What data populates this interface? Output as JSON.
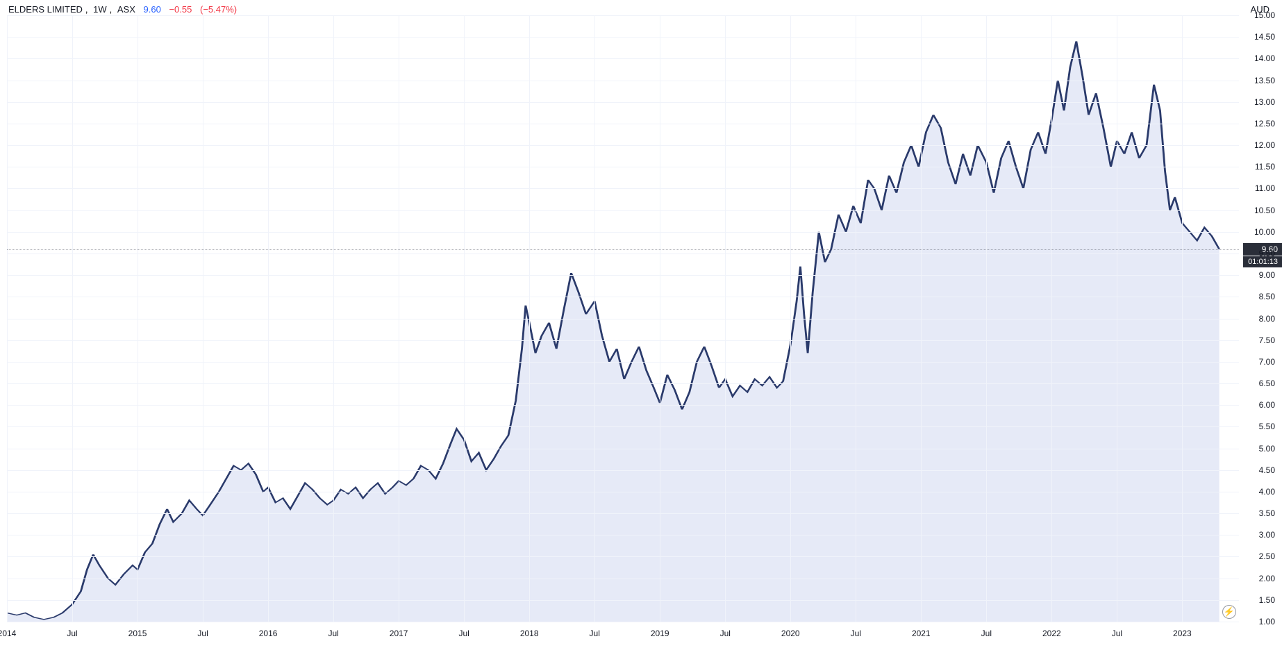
{
  "header": {
    "title": "ELDERS LIMITED",
    "interval": "1W",
    "exchange": "ASX",
    "price": "9.60",
    "change": "−0.55",
    "pct": "(−5.47%)"
  },
  "currency_label": "AUD",
  "chart": {
    "type": "area",
    "line_color": "#2a3a6b",
    "fill_color": "#d1d9f0",
    "fill_opacity": 0.55,
    "background_color": "#ffffff",
    "grid_color": "#f0f3fa",
    "price_line_color": "#5d606b",
    "price_tag_bg": "#2a2e39",
    "price_tag_fg": "#ffffff",
    "current_price": 9.6,
    "countdown": "01:01:13",
    "ylim": [
      1.0,
      15.0
    ],
    "ytick_step": 0.5,
    "y_ticks": [
      1.0,
      1.5,
      2.0,
      2.5,
      3.0,
      3.5,
      4.0,
      4.5,
      5.0,
      5.5,
      6.0,
      6.5,
      7.0,
      7.5,
      8.0,
      8.5,
      9.0,
      9.5,
      10.0,
      10.5,
      11.0,
      11.5,
      12.0,
      12.5,
      13.0,
      13.5,
      14.0,
      14.5,
      15.0
    ],
    "x_ticks": [
      {
        "t": 0.0,
        "label": "2014"
      },
      {
        "t": 5.3,
        "label": "Jul"
      },
      {
        "t": 10.6,
        "label": "2015"
      },
      {
        "t": 15.9,
        "label": "Jul"
      },
      {
        "t": 21.2,
        "label": "2016"
      },
      {
        "t": 26.5,
        "label": "Jul"
      },
      {
        "t": 31.8,
        "label": "2017"
      },
      {
        "t": 37.1,
        "label": "Jul"
      },
      {
        "t": 42.4,
        "label": "2018"
      },
      {
        "t": 47.7,
        "label": "Jul"
      },
      {
        "t": 53.0,
        "label": "2019"
      },
      {
        "t": 58.3,
        "label": "Jul"
      },
      {
        "t": 63.6,
        "label": "2020"
      },
      {
        "t": 68.9,
        "label": "Jul"
      },
      {
        "t": 74.2,
        "label": "2021"
      },
      {
        "t": 79.5,
        "label": "Jul"
      },
      {
        "t": 84.8,
        "label": "2022"
      },
      {
        "t": 90.1,
        "label": "Jul"
      },
      {
        "t": 95.4,
        "label": "2023"
      }
    ],
    "x_range": [
      0,
      100
    ],
    "series": [
      {
        "t": 0.0,
        "v": 1.2
      },
      {
        "t": 0.8,
        "v": 1.15
      },
      {
        "t": 1.5,
        "v": 1.2
      },
      {
        "t": 2.2,
        "v": 1.1
      },
      {
        "t": 3.0,
        "v": 1.05
      },
      {
        "t": 3.8,
        "v": 1.1
      },
      {
        "t": 4.5,
        "v": 1.2
      },
      {
        "t": 5.3,
        "v": 1.4
      },
      {
        "t": 6.0,
        "v": 1.7
      },
      {
        "t": 6.5,
        "v": 2.2
      },
      {
        "t": 7.0,
        "v": 2.55
      },
      {
        "t": 7.5,
        "v": 2.3
      },
      {
        "t": 8.2,
        "v": 2.0
      },
      {
        "t": 8.8,
        "v": 1.85
      },
      {
        "t": 9.5,
        "v": 2.1
      },
      {
        "t": 10.2,
        "v": 2.3
      },
      {
        "t": 10.6,
        "v": 2.2
      },
      {
        "t": 11.2,
        "v": 2.6
      },
      {
        "t": 11.8,
        "v": 2.8
      },
      {
        "t": 12.4,
        "v": 3.25
      },
      {
        "t": 13.0,
        "v": 3.6
      },
      {
        "t": 13.5,
        "v": 3.3
      },
      {
        "t": 14.2,
        "v": 3.5
      },
      {
        "t": 14.8,
        "v": 3.8
      },
      {
        "t": 15.4,
        "v": 3.6
      },
      {
        "t": 15.9,
        "v": 3.45
      },
      {
        "t": 16.5,
        "v": 3.7
      },
      {
        "t": 17.2,
        "v": 4.0
      },
      {
        "t": 17.8,
        "v": 4.3
      },
      {
        "t": 18.4,
        "v": 4.6
      },
      {
        "t": 19.0,
        "v": 4.5
      },
      {
        "t": 19.6,
        "v": 4.65
      },
      {
        "t": 20.2,
        "v": 4.4
      },
      {
        "t": 20.8,
        "v": 4.0
      },
      {
        "t": 21.2,
        "v": 4.1
      },
      {
        "t": 21.8,
        "v": 3.75
      },
      {
        "t": 22.4,
        "v": 3.85
      },
      {
        "t": 23.0,
        "v": 3.6
      },
      {
        "t": 23.6,
        "v": 3.9
      },
      {
        "t": 24.2,
        "v": 4.2
      },
      {
        "t": 24.8,
        "v": 4.05
      },
      {
        "t": 25.4,
        "v": 3.85
      },
      {
        "t": 26.0,
        "v": 3.7
      },
      {
        "t": 26.5,
        "v": 3.8
      },
      {
        "t": 27.1,
        "v": 4.05
      },
      {
        "t": 27.7,
        "v": 3.95
      },
      {
        "t": 28.3,
        "v": 4.1
      },
      {
        "t": 28.9,
        "v": 3.85
      },
      {
        "t": 29.5,
        "v": 4.05
      },
      {
        "t": 30.1,
        "v": 4.2
      },
      {
        "t": 30.7,
        "v": 3.95
      },
      {
        "t": 31.3,
        "v": 4.1
      },
      {
        "t": 31.8,
        "v": 4.25
      },
      {
        "t": 32.4,
        "v": 4.15
      },
      {
        "t": 33.0,
        "v": 4.3
      },
      {
        "t": 33.6,
        "v": 4.6
      },
      {
        "t": 34.2,
        "v": 4.5
      },
      {
        "t": 34.8,
        "v": 4.3
      },
      {
        "t": 35.4,
        "v": 4.65
      },
      {
        "t": 36.0,
        "v": 5.1
      },
      {
        "t": 36.5,
        "v": 5.45
      },
      {
        "t": 37.1,
        "v": 5.2
      },
      {
        "t": 37.7,
        "v": 4.7
      },
      {
        "t": 38.3,
        "v": 4.9
      },
      {
        "t": 38.9,
        "v": 4.5
      },
      {
        "t": 39.5,
        "v": 4.75
      },
      {
        "t": 40.1,
        "v": 5.05
      },
      {
        "t": 40.7,
        "v": 5.3
      },
      {
        "t": 41.3,
        "v": 6.1
      },
      {
        "t": 41.8,
        "v": 7.3
      },
      {
        "t": 42.1,
        "v": 8.3
      },
      {
        "t": 42.4,
        "v": 7.9
      },
      {
        "t": 42.9,
        "v": 7.2
      },
      {
        "t": 43.4,
        "v": 7.6
      },
      {
        "t": 44.0,
        "v": 7.9
      },
      {
        "t": 44.6,
        "v": 7.3
      },
      {
        "t": 45.2,
        "v": 8.2
      },
      {
        "t": 45.8,
        "v": 9.05
      },
      {
        "t": 46.4,
        "v": 8.6
      },
      {
        "t": 47.0,
        "v": 8.1
      },
      {
        "t": 47.7,
        "v": 8.4
      },
      {
        "t": 48.3,
        "v": 7.6
      },
      {
        "t": 48.9,
        "v": 7.0
      },
      {
        "t": 49.5,
        "v": 7.3
      },
      {
        "t": 50.1,
        "v": 6.6
      },
      {
        "t": 50.7,
        "v": 7.0
      },
      {
        "t": 51.3,
        "v": 7.35
      },
      {
        "t": 51.9,
        "v": 6.8
      },
      {
        "t": 52.5,
        "v": 6.4
      },
      {
        "t": 53.0,
        "v": 6.05
      },
      {
        "t": 53.6,
        "v": 6.7
      },
      {
        "t": 54.2,
        "v": 6.35
      },
      {
        "t": 54.8,
        "v": 5.9
      },
      {
        "t": 55.4,
        "v": 6.3
      },
      {
        "t": 56.0,
        "v": 7.0
      },
      {
        "t": 56.6,
        "v": 7.35
      },
      {
        "t": 57.2,
        "v": 6.9
      },
      {
        "t": 57.8,
        "v": 6.4
      },
      {
        "t": 58.3,
        "v": 6.6
      },
      {
        "t": 58.9,
        "v": 6.2
      },
      {
        "t": 59.5,
        "v": 6.45
      },
      {
        "t": 60.1,
        "v": 6.3
      },
      {
        "t": 60.7,
        "v": 6.6
      },
      {
        "t": 61.3,
        "v": 6.45
      },
      {
        "t": 61.9,
        "v": 6.65
      },
      {
        "t": 62.5,
        "v": 6.4
      },
      {
        "t": 63.0,
        "v": 6.55
      },
      {
        "t": 63.6,
        "v": 7.4
      },
      {
        "t": 64.1,
        "v": 8.4
      },
      {
        "t": 64.4,
        "v": 9.2
      },
      {
        "t": 64.7,
        "v": 8.1
      },
      {
        "t": 65.0,
        "v": 7.2
      },
      {
        "t": 65.4,
        "v": 8.6
      },
      {
        "t": 65.9,
        "v": 10.0
      },
      {
        "t": 66.4,
        "v": 9.3
      },
      {
        "t": 66.9,
        "v": 9.6
      },
      {
        "t": 67.5,
        "v": 10.4
      },
      {
        "t": 68.1,
        "v": 10.0
      },
      {
        "t": 68.7,
        "v": 10.6
      },
      {
        "t": 69.3,
        "v": 10.2
      },
      {
        "t": 69.9,
        "v": 11.2
      },
      {
        "t": 70.4,
        "v": 11.0
      },
      {
        "t": 71.0,
        "v": 10.5
      },
      {
        "t": 71.6,
        "v": 11.3
      },
      {
        "t": 72.2,
        "v": 10.9
      },
      {
        "t": 72.8,
        "v": 11.6
      },
      {
        "t": 73.4,
        "v": 12.0
      },
      {
        "t": 74.0,
        "v": 11.5
      },
      {
        "t": 74.6,
        "v": 12.3
      },
      {
        "t": 75.2,
        "v": 12.7
      },
      {
        "t": 75.8,
        "v": 12.4
      },
      {
        "t": 76.4,
        "v": 11.6
      },
      {
        "t": 77.0,
        "v": 11.1
      },
      {
        "t": 77.6,
        "v": 11.8
      },
      {
        "t": 78.2,
        "v": 11.3
      },
      {
        "t": 78.8,
        "v": 12.0
      },
      {
        "t": 79.5,
        "v": 11.6
      },
      {
        "t": 80.1,
        "v": 10.9
      },
      {
        "t": 80.7,
        "v": 11.7
      },
      {
        "t": 81.3,
        "v": 12.1
      },
      {
        "t": 81.9,
        "v": 11.5
      },
      {
        "t": 82.5,
        "v": 11.0
      },
      {
        "t": 83.1,
        "v": 11.9
      },
      {
        "t": 83.7,
        "v": 12.3
      },
      {
        "t": 84.3,
        "v": 11.8
      },
      {
        "t": 84.8,
        "v": 12.6
      },
      {
        "t": 85.3,
        "v": 13.5
      },
      {
        "t": 85.8,
        "v": 12.8
      },
      {
        "t": 86.3,
        "v": 13.8
      },
      {
        "t": 86.8,
        "v": 14.4
      },
      {
        "t": 87.3,
        "v": 13.6
      },
      {
        "t": 87.8,
        "v": 12.7
      },
      {
        "t": 88.4,
        "v": 13.2
      },
      {
        "t": 89.0,
        "v": 12.4
      },
      {
        "t": 89.6,
        "v": 11.5
      },
      {
        "t": 90.1,
        "v": 12.1
      },
      {
        "t": 90.7,
        "v": 11.8
      },
      {
        "t": 91.3,
        "v": 12.3
      },
      {
        "t": 91.9,
        "v": 11.7
      },
      {
        "t": 92.5,
        "v": 12.0
      },
      {
        "t": 93.1,
        "v": 13.4
      },
      {
        "t": 93.6,
        "v": 12.8
      },
      {
        "t": 94.0,
        "v": 11.4
      },
      {
        "t": 94.4,
        "v": 10.5
      },
      {
        "t": 94.8,
        "v": 10.8
      },
      {
        "t": 95.4,
        "v": 10.2
      },
      {
        "t": 96.0,
        "v": 10.0
      },
      {
        "t": 96.6,
        "v": 9.8
      },
      {
        "t": 97.2,
        "v": 10.1
      },
      {
        "t": 97.8,
        "v": 9.9
      },
      {
        "t": 98.4,
        "v": 9.6
      }
    ]
  },
  "bolt_icon_glyph": "⚡"
}
